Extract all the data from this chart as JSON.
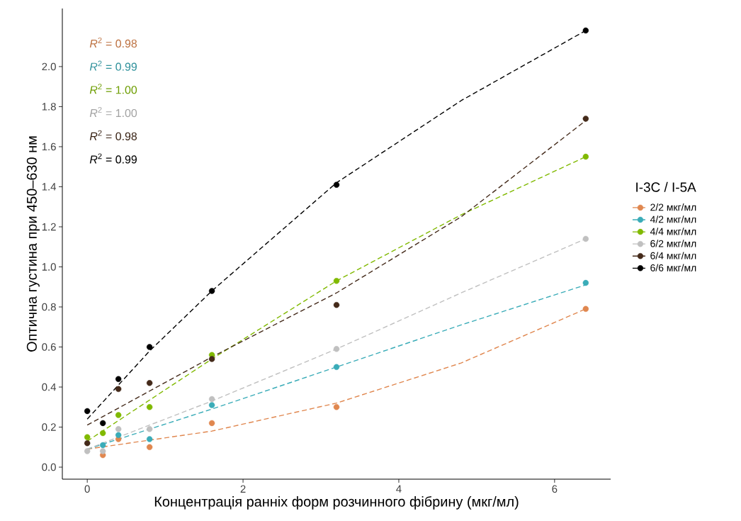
{
  "chart_data": {
    "type": "scatter",
    "xlabel": "Концентрація ранніх форм розчинного фібрину (мкг/мл)",
    "ylabel": "Оптична густина при 450–630 нм",
    "legend_title": "I-3C / I-5A",
    "legend": "right",
    "grid": false,
    "marker": "circle",
    "line_style": "dashed",
    "xlim": [
      -0.32,
      6.72
    ],
    "xticks": [
      0,
      2,
      4,
      6
    ],
    "ylim": [
      -0.06,
      2.29
    ],
    "yticks": [
      {
        "value": 0,
        "label": "0.0"
      },
      {
        "value": 0.2,
        "label": "0.2"
      },
      {
        "value": 0.4,
        "label": "0.4"
      },
      {
        "value": 0.6,
        "label": "0.6"
      },
      {
        "value": 0.8,
        "label": "0.8"
      },
      {
        "value": 1.0,
        "label": "1.0"
      },
      {
        "value": 1.2,
        "label": "1.2"
      },
      {
        "value": 1.4,
        "label": "1.4"
      },
      {
        "value": 1.6,
        "label": "1.6"
      },
      {
        "value": 1.8,
        "label": "1.8"
      },
      {
        "value": 2.0,
        "label": "2.0"
      }
    ],
    "x": [
      0,
      0.2,
      0.4,
      0.8,
      1.6,
      3.2,
      6.4
    ],
    "annotations": [
      "*R*$^{2}$ = 0.98",
      "*R*$^{2}$ = 0.99",
      "*R*$^{2}$ = 1.00",
      "*R*$^{2}$ = 1.00",
      "*R*$^{2}$ = 0.98",
      "*R*$^{2}$ = 0.99"
    ],
    "series": [
      {
        "name": "2/2 мкг/мл",
        "color": "#e0874f",
        "values": [
          null,
          0.06,
          0.14,
          0.1,
          0.22,
          0.3,
          0.79
        ]
      },
      {
        "name": "4/2 мкг/мл",
        "color": "#3aacb8",
        "values": [
          null,
          0.11,
          0.16,
          0.14,
          0.31,
          0.5,
          0.92
        ]
      },
      {
        "name": "4/4 мкг/мл",
        "color": "#80b900",
        "values": [
          0.15,
          0.17,
          0.26,
          0.3,
          0.56,
          0.93,
          1.55
        ]
      },
      {
        "name": "6/2 мкг/мл",
        "color": "#c0c0c0",
        "values": [
          0.08,
          0.08,
          0.19,
          0.19,
          0.34,
          0.59,
          1.14
        ]
      },
      {
        "name": "6/4 мкг/мл",
        "color": "#442a1a",
        "values": [
          0.12,
          null,
          0.39,
          0.42,
          0.54,
          0.81,
          1.74
        ]
      },
      {
        "name": "6/6 мкг/мл",
        "color": "#000000",
        "values": [
          0.28,
          0.22,
          0.44,
          0.6,
          0.88,
          1.41,
          2.18
        ]
      },
      {
        "type": "line",
        "marker": "none",
        "color": "#e0874f",
        "x": [
          0,
          1.6,
          3.2,
          4.8,
          6.4
        ],
        "values": [
          0.09,
          0.18,
          0.32,
          0.52,
          0.79
        ]
      },
      {
        "type": "line",
        "marker": "none",
        "color": "#3aacb8",
        "x": [
          0,
          1.6,
          3.2,
          4.8,
          6.4
        ],
        "values": [
          0.09,
          0.29,
          0.5,
          0.71,
          0.91
        ]
      },
      {
        "type": "line",
        "marker": "none",
        "color": "#80b900",
        "x": [
          0,
          1.6,
          3.2,
          4.8,
          6.4
        ],
        "values": [
          0.13,
          0.54,
          0.93,
          1.26,
          1.55
        ]
      },
      {
        "type": "line",
        "marker": "none",
        "color": "#c0c0c0",
        "x": [
          0,
          1.6,
          3.2,
          4.8,
          6.4
        ],
        "values": [
          0.09,
          0.33,
          0.59,
          0.87,
          1.14
        ]
      },
      {
        "type": "line",
        "marker": "none",
        "color": "#442a1a",
        "x": [
          0,
          1.6,
          3.2,
          4.8,
          6.4
        ],
        "values": [
          0.21,
          0.55,
          0.87,
          1.25,
          1.73
        ]
      },
      {
        "type": "line",
        "marker": "none",
        "color": "#000000",
        "x": [
          0,
          0.8,
          1.6,
          3.2,
          4.8,
          6.4
        ],
        "values": [
          0.24,
          0.58,
          0.88,
          1.42,
          1.83,
          2.18
        ]
      }
    ]
  }
}
